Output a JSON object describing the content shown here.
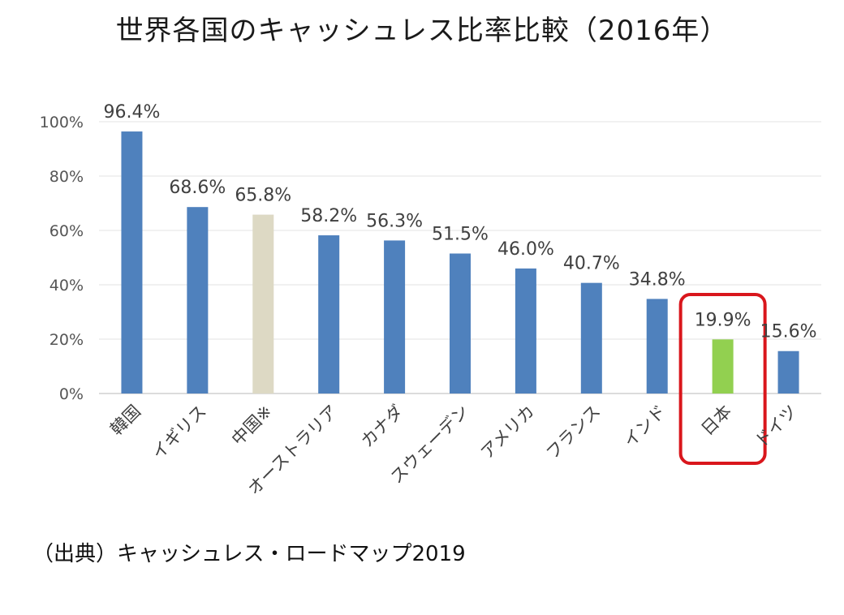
{
  "chart_data": {
    "type": "bar",
    "title": "世界各国のキャッシュレス比率比較（2016年）",
    "categories": [
      "韓国",
      "イギリス",
      "中国※",
      "オーストラリア",
      "カナダ",
      "スウェーデン",
      "アメリカ",
      "フランス",
      "インド",
      "日本",
      "ドイツ"
    ],
    "values": [
      96.4,
      68.6,
      65.8,
      58.2,
      56.3,
      51.5,
      46.0,
      40.7,
      34.8,
      19.9,
      15.6
    ],
    "value_labels": [
      "96.4%",
      "68.6%",
      "65.8%",
      "58.2%",
      "56.3%",
      "51.5%",
      "46.0%",
      "40.7%",
      "34.8%",
      "19.9%",
      "15.6%"
    ],
    "yticks": [
      "0%",
      "20%",
      "40%",
      "60%",
      "80%",
      "100%"
    ],
    "ylim": [
      0,
      100
    ],
    "grid": true,
    "legend": "none",
    "colors": {
      "default": "#4f81bd",
      "china": "#ddd9c4",
      "japan": "#92d050",
      "highlight": "#d9161c",
      "grid": "#e3e3e3",
      "axis": "#d0d0d0"
    },
    "highlighted_category": "日本"
  },
  "source": "（出典）キャッシュレス・ロードマップ2019"
}
